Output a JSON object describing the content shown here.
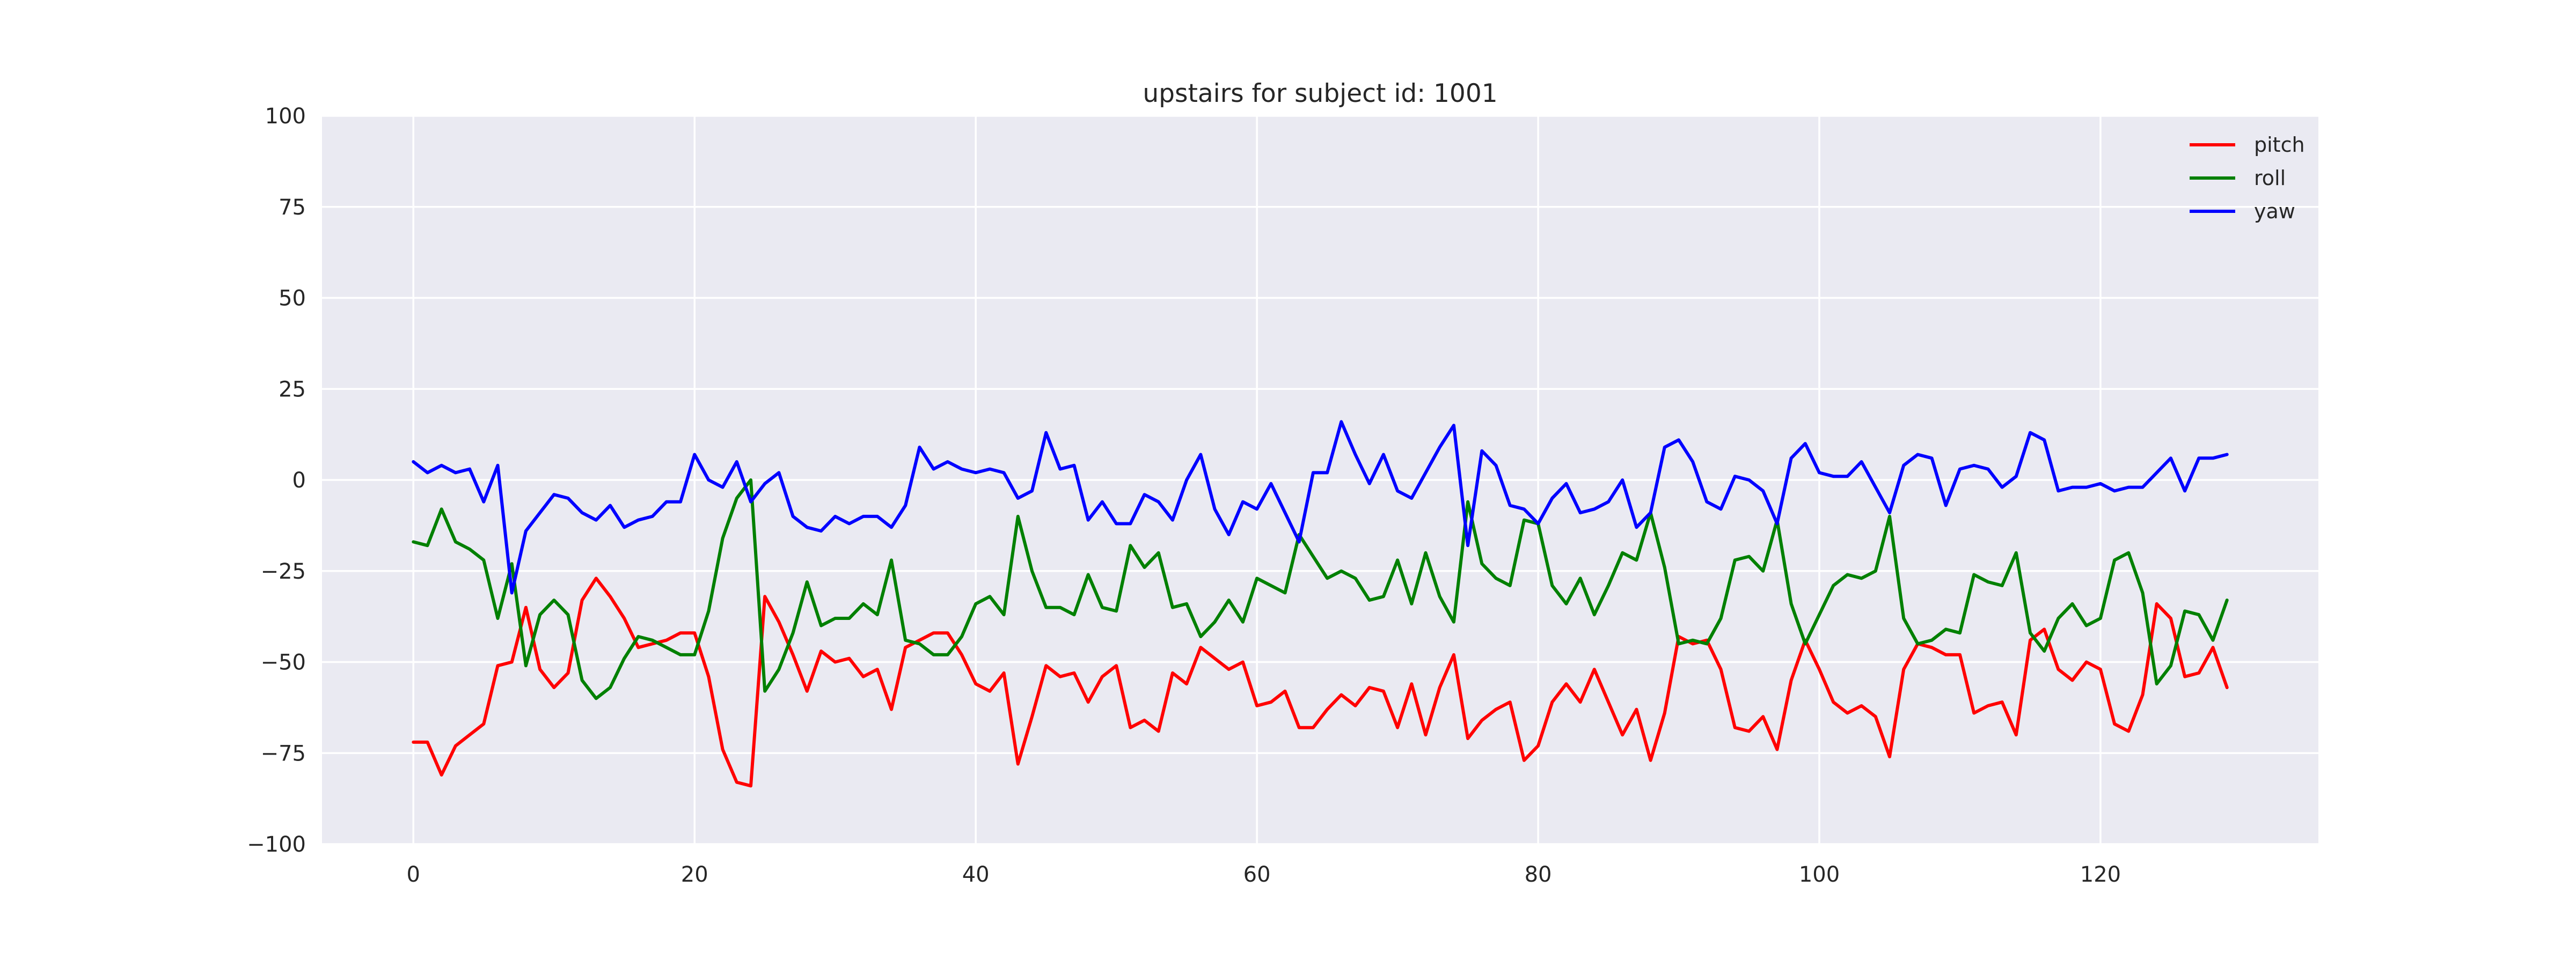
{
  "chart_data": {
    "type": "line",
    "title": "upstairs for subject id: 1001",
    "xlabel": "",
    "ylabel": "",
    "xlim": [
      -6.5,
      135.5
    ],
    "ylim": [
      -100,
      100
    ],
    "x_ticks": [
      0,
      20,
      40,
      60,
      80,
      100,
      120
    ],
    "y_ticks": [
      -100,
      -75,
      -50,
      -25,
      0,
      25,
      50,
      75,
      100
    ],
    "y_tick_labels": [
      "−100",
      "−75",
      "−50",
      "−25",
      "0",
      "25",
      "50",
      "75",
      "100"
    ],
    "grid": true,
    "legend_position": "top-right",
    "series": [
      {
        "name": "pitch",
        "color": "#ff0000",
        "values": [
          -72,
          -72,
          -81,
          -73,
          -70,
          -67,
          -51,
          -50,
          -35,
          -52,
          -57,
          -53,
          -33,
          -27,
          -32,
          -38,
          -46,
          -45,
          -44,
          -42,
          -42,
          -54,
          -74,
          -83,
          -84,
          -32,
          -39,
          -48,
          -58,
          -47,
          -50,
          -49,
          -54,
          -52,
          -63,
          -46,
          -44,
          -42,
          -42,
          -48,
          -56,
          -58,
          -53,
          -78,
          -65,
          -51,
          -54,
          -53,
          -61,
          -54,
          -51,
          -68,
          -66,
          -69,
          -53,
          -56,
          -46,
          -49,
          -52,
          -50,
          -62,
          -61,
          -58,
          -68,
          -68,
          -63,
          -59,
          -62,
          -57,
          -58,
          -68,
          -56,
          -70,
          -57,
          -48,
          -71,
          -66,
          -63,
          -61,
          -77,
          -73,
          -61,
          -56,
          -61,
          -52,
          -61,
          -70,
          -63,
          -77,
          -64,
          -43,
          -45,
          -44,
          -52,
          -68,
          -69,
          -65,
          -74,
          -55,
          -44,
          -52,
          -61,
          -64,
          -62,
          -65,
          -76,
          -52,
          -45,
          -46,
          -48,
          -48,
          -64,
          -62,
          -61,
          -70,
          -44,
          -41,
          -52,
          -55,
          -50,
          -52,
          -67,
          -69,
          -59,
          -34,
          -38,
          -54,
          -53,
          -46,
          -57
        ]
      },
      {
        "name": "roll",
        "color": "#008000",
        "values": [
          -17,
          -18,
          -8,
          -17,
          -19,
          -22,
          -38,
          -23,
          -51,
          -37,
          -33,
          -37,
          -55,
          -60,
          -57,
          -49,
          -43,
          -44,
          -46,
          -48,
          -48,
          -36,
          -16,
          -5,
          0,
          -58,
          -52,
          -42,
          -28,
          -40,
          -38,
          -38,
          -34,
          -37,
          -22,
          -44,
          -45,
          -48,
          -48,
          -43,
          -34,
          -32,
          -37,
          -10,
          -25,
          -35,
          -35,
          -37,
          -26,
          -35,
          -36,
          -18,
          -24,
          -20,
          -35,
          -34,
          -43,
          -39,
          -33,
          -39,
          -27,
          -29,
          -31,
          -15,
          -21,
          -27,
          -25,
          -27,
          -33,
          -32,
          -22,
          -34,
          -20,
          -32,
          -39,
          -6,
          -23,
          -27,
          -29,
          -11,
          -12,
          -29,
          -34,
          -27,
          -37,
          -29,
          -20,
          -22,
          -9,
          -24,
          -45,
          -44,
          -45,
          -38,
          -22,
          -21,
          -25,
          -11,
          -34,
          -45,
          -37,
          -29,
          -26,
          -27,
          -25,
          -10,
          -38,
          -45,
          -44,
          -41,
          -42,
          -26,
          -28,
          -29,
          -20,
          -42,
          -47,
          -38,
          -34,
          -40,
          -38,
          -22,
          -20,
          -31,
          -56,
          -51,
          -36,
          -37,
          -44,
          -33
        ]
      },
      {
        "name": "yaw",
        "color": "#0000ff",
        "values": [
          5,
          2,
          4,
          2,
          3,
          -6,
          4,
          -31,
          -14,
          -9,
          -4,
          -5,
          -9,
          -11,
          -7,
          -13,
          -11,
          -10,
          -6,
          -6,
          7,
          0,
          -2,
          5,
          -6,
          -1,
          2,
          -10,
          -13,
          -14,
          -10,
          -12,
          -10,
          -10,
          -13,
          -7,
          9,
          3,
          5,
          3,
          2,
          3,
          2,
          -5,
          -3,
          13,
          3,
          4,
          -11,
          -6,
          -12,
          -12,
          -4,
          -6,
          -11,
          0,
          7,
          -8,
          -15,
          -6,
          -8,
          -1,
          -9,
          -17,
          2,
          2,
          16,
          7,
          -1,
          7,
          -3,
          -5,
          2,
          9,
          15,
          -18,
          8,
          4,
          -7,
          -8,
          -12,
          -5,
          -1,
          -9,
          -8,
          -6,
          0,
          -13,
          -9,
          9,
          11,
          5,
          -6,
          -8,
          1,
          0,
          -3,
          -12,
          6,
          10,
          2,
          1,
          1,
          5,
          -2,
          -9,
          4,
          7,
          6,
          -7,
          3,
          4,
          3,
          -2,
          1,
          13,
          11,
          -3,
          -2,
          -2,
          -1,
          -3,
          -2,
          -2,
          2,
          6,
          -3,
          6,
          6,
          7
        ]
      }
    ]
  }
}
